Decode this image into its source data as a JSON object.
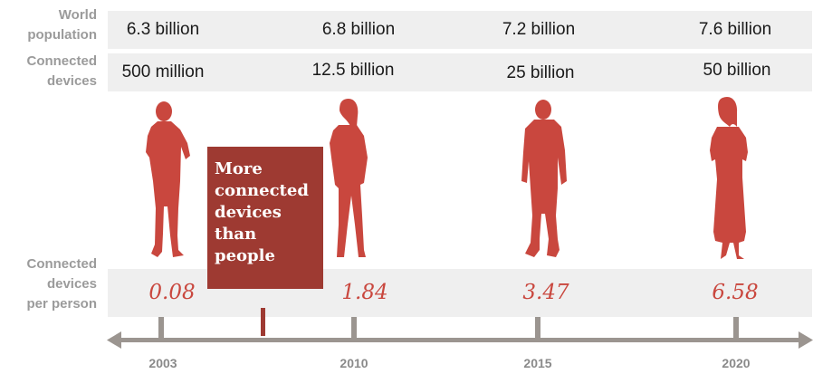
{
  "labels": {
    "world_population": [
      "World",
      "population"
    ],
    "connected_devices": [
      "Connected",
      "devices"
    ],
    "devices_per_person": [
      "Connected",
      "devices",
      "per person"
    ]
  },
  "world_population": [
    "6.3 billion",
    "6.8 billion",
    "7.2 billion",
    "7.6 billion"
  ],
  "connected_devices": [
    "500 million",
    "12.5 billion",
    "25 billion",
    "50 billion"
  ],
  "devices_per_person": [
    "0.08",
    "1.84",
    "3.47",
    "6.58"
  ],
  "years": [
    "2003",
    "2010",
    "2015",
    "2020"
  ],
  "callout": [
    "More",
    "connected",
    "devices",
    "than",
    "people"
  ],
  "colors": {
    "accent": "#c9473e",
    "callout": "#9e3a32",
    "band": "#efefef",
    "timeline": "#9b9590",
    "label": "#9b9b9b"
  },
  "icons": [
    "man-silhouette-icon",
    "woman-silhouette-icon",
    "man-silhouette-icon",
    "woman-silhouette-icon"
  ]
}
